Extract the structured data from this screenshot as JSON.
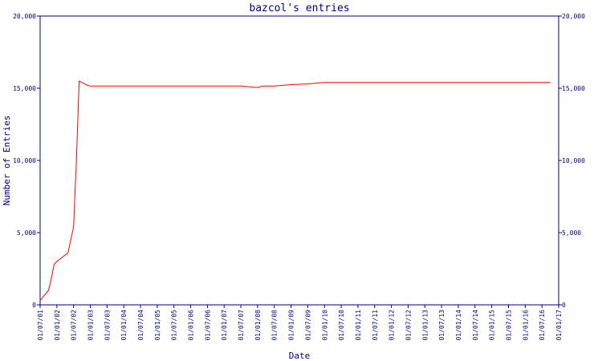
{
  "chart_data": {
    "type": "line",
    "title": "bazcol's entries",
    "xlabel": "Date",
    "ylabel": "Number of Entries",
    "ylim": [
      0,
      20000
    ],
    "y_ticks": [
      0,
      5000,
      10000,
      15000,
      20000
    ],
    "y_tick_labels": [
      "0",
      "5,000",
      "10,000",
      "15,000",
      "20,000"
    ],
    "x_tick_labels": [
      "01/07/01",
      "01/01/02",
      "01/07/02",
      "01/01/03",
      "01/07/03",
      "01/01/04",
      "01/07/04",
      "01/01/05",
      "01/07/05",
      "01/01/06",
      "01/07/06",
      "01/01/07",
      "01/07/07",
      "01/01/08",
      "01/07/08",
      "01/01/09",
      "01/07/09",
      "01/01/10",
      "01/07/10",
      "01/01/11",
      "01/07/11",
      "01/01/12",
      "01/07/12",
      "01/01/13",
      "01/07/13",
      "01/01/14",
      "01/07/14",
      "01/01/15",
      "01/07/15",
      "01/01/16",
      "01/07/16",
      "01/01/17"
    ],
    "grid": false,
    "line_color": "#ff0000",
    "axis_color": "#000080",
    "series": [
      {
        "x": [
          "01/07/01",
          "01/10/01",
          "01/11/01",
          "01/12/01",
          "01/01/02",
          "01/03/02",
          "01/05/02",
          "01/07/02",
          "01/08/02",
          "01/09/02",
          "01/10/02",
          "01/11/02",
          "01/12/02",
          "01/01/03",
          "01/01/04",
          "01/01/05",
          "01/01/06",
          "01/01/07",
          "01/07/07",
          "01/10/07",
          "01/01/08",
          "01/03/08",
          "01/07/08",
          "01/01/09",
          "01/07/09",
          "01/01/10",
          "01/01/11",
          "01/01/12",
          "01/01/13",
          "01/01/14",
          "01/01/15",
          "01/01/16",
          "01/07/16",
          "01/10/16"
        ],
        "y": [
          300,
          1000,
          1800,
          2800,
          3000,
          3300,
          3600,
          5400,
          10000,
          15500,
          15400,
          15300,
          15200,
          15150,
          15150,
          15150,
          15150,
          15150,
          15150,
          15100,
          15050,
          15150,
          15150,
          15250,
          15300,
          15400,
          15400,
          15400,
          15400,
          15400,
          15400,
          15400,
          15400,
          15400
        ]
      }
    ]
  }
}
